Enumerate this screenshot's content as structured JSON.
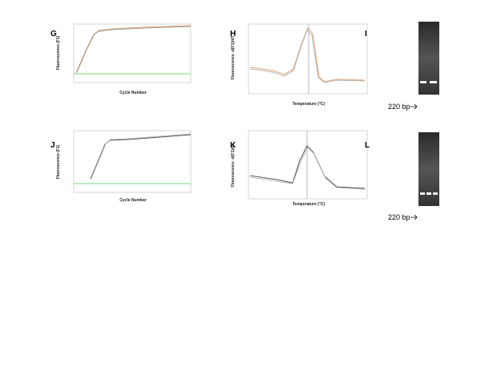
{
  "panels": [
    {
      "label": "G",
      "x_label": "Cycle Number",
      "y_label": "Fluorescence (F1)"
    },
    {
      "label": "H",
      "x_label": "Temperature (°C)",
      "y_label": "Fluorescence -d(F1)/dT"
    },
    {
      "label": "I",
      "band_label": "220 bp"
    },
    {
      "label": "J",
      "x_label": "Cycle Number",
      "y_label": "Fluorescence (F1)"
    },
    {
      "label": "K",
      "x_label": "Temperature (°C)",
      "y_label": "Fluorescence -d(F1)/dT"
    },
    {
      "label": "L",
      "band_label": "220 bp"
    }
  ]
}
